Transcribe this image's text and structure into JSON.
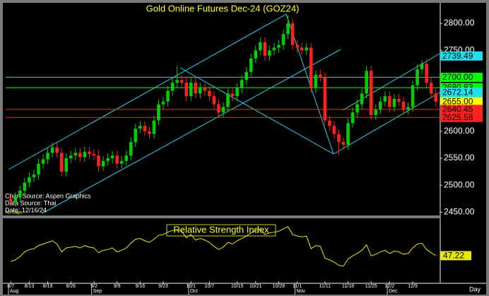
{
  "chart_data": [
    {
      "type": "candlestick",
      "title": "Gold Online Futures Dec-24 (GOZ24)",
      "categories": [
        "8/7",
        null,
        null,
        null,
        "8/13",
        null,
        null,
        null,
        "8/19",
        null,
        null,
        null,
        null,
        "8/26",
        null,
        null,
        null,
        null,
        "9/2",
        null,
        null,
        null,
        null,
        "9/9",
        null,
        null,
        null,
        null,
        "9/16",
        null,
        null,
        null,
        null,
        "9/23",
        null,
        null,
        null,
        null,
        null,
        "10/1",
        null,
        null,
        null,
        "10/7",
        null,
        null,
        null,
        null,
        null,
        "10/15",
        null,
        null,
        null,
        "10/21",
        null,
        null,
        null,
        null,
        "10/28",
        null,
        null,
        null,
        "11/1",
        null,
        null,
        null,
        null,
        null,
        "11/11",
        null,
        null,
        null,
        null,
        "11/18",
        null,
        null,
        null,
        null,
        "11/25",
        null,
        null,
        null,
        "12/2",
        null,
        null,
        null,
        null,
        "12/9",
        null,
        null,
        null,
        null,
        null
      ],
      "months": [
        "Aug",
        null,
        null,
        null,
        null,
        null,
        null,
        null,
        null,
        null,
        null,
        null,
        null,
        null,
        null,
        null,
        null,
        null,
        "Sep",
        null,
        null,
        null,
        null,
        null,
        null,
        null,
        null,
        null,
        null,
        null,
        null,
        null,
        null,
        null,
        null,
        null,
        null,
        null,
        null,
        "Oct",
        null,
        null,
        null,
        null,
        null,
        null,
        null,
        null,
        null,
        null,
        null,
        null,
        null,
        null,
        null,
        null,
        null,
        null,
        null,
        null,
        null,
        null,
        "Nov",
        null,
        null,
        null,
        null,
        null,
        null,
        null,
        null,
        null,
        null,
        null,
        null,
        null,
        null,
        null,
        null,
        null,
        null,
        null,
        "Dec",
        null,
        null,
        null,
        null,
        null,
        null,
        null,
        null,
        null,
        null
      ],
      "open": [
        2475,
        2470,
        2478,
        2490,
        2505,
        2515,
        2520,
        2540,
        2548,
        2560,
        2570,
        2560,
        2525,
        2550,
        2555,
        2560,
        2552,
        2562,
        2558,
        2555,
        2535,
        2545,
        2550,
        2555,
        2540,
        2545,
        2555,
        2580,
        2605,
        2610,
        2600,
        2595,
        2620,
        2650,
        2655,
        2675,
        2690,
        2695,
        2690,
        2665,
        2690,
        2670,
        2680,
        2675,
        2665,
        2650,
        2635,
        2645,
        2670,
        2665,
        2680,
        2695,
        2710,
        2735,
        2750,
        2765,
        2740,
        2750,
        2755,
        2760,
        2780,
        2800,
        2760,
        2755,
        2750,
        2755,
        2680,
        2705,
        2700,
        2620,
        2610,
        2595,
        2580,
        2575,
        2615,
        2635,
        2650,
        2670,
        2712,
        2630,
        2640,
        2655,
        2665,
        2645,
        2660,
        2655,
        2640,
        2645,
        2685,
        2715,
        2725,
        2690,
        2670
      ],
      "high": [
        2484,
        2487,
        2499,
        2514,
        2524,
        2529,
        2549,
        2557,
        2569,
        2579,
        2579,
        2569,
        2559,
        2564,
        2569,
        2569,
        2571,
        2571,
        2567,
        2564,
        2554,
        2559,
        2564,
        2564,
        2554,
        2564,
        2589,
        2614,
        2619,
        2619,
        2609,
        2629,
        2659,
        2664,
        2684,
        2699,
        2721,
        2704,
        2699,
        2699,
        2699,
        2689,
        2689,
        2684,
        2674,
        2659,
        2654,
        2679,
        2679,
        2689,
        2704,
        2719,
        2744,
        2759,
        2774,
        2774,
        2759,
        2764,
        2769,
        2789,
        2815,
        2809,
        2769,
        2764,
        2764,
        2764,
        2714,
        2714,
        2709,
        2629,
        2619,
        2604,
        2589,
        2624,
        2644,
        2659,
        2679,
        2721,
        2721,
        2649,
        2664,
        2674,
        2674,
        2669,
        2669,
        2664,
        2654,
        2694,
        2724,
        2732,
        2734,
        2699,
        2679
      ],
      "low": [
        2461,
        2461,
        2469,
        2481,
        2496,
        2506,
        2511,
        2531,
        2539,
        2551,
        2551,
        2516,
        2516,
        2541,
        2546,
        2543,
        2543,
        2549,
        2546,
        2526,
        2526,
        2536,
        2541,
        2531,
        2531,
        2536,
        2546,
        2571,
        2596,
        2591,
        2586,
        2586,
        2611,
        2641,
        2646,
        2666,
        2681,
        2681,
        2656,
        2656,
        2661,
        2661,
        2666,
        2656,
        2641,
        2626,
        2626,
        2636,
        2656,
        2656,
        2671,
        2686,
        2701,
        2726,
        2741,
        2731,
        2731,
        2741,
        2746,
        2751,
        2771,
        2751,
        2746,
        2741,
        2741,
        2671,
        2671,
        2691,
        2611,
        2601,
        2586,
        2556,
        2566,
        2566,
        2606,
        2626,
        2641,
        2661,
        2621,
        2621,
        2631,
        2646,
        2636,
        2636,
        2646,
        2631,
        2631,
        2636,
        2676,
        2706,
        2681,
        2661,
        2646
      ],
      "close": [
        2470,
        2478,
        2490,
        2505,
        2515,
        2520,
        2540,
        2548,
        2560,
        2570,
        2560,
        2525,
        2550,
        2555,
        2560,
        2552,
        2562,
        2558,
        2555,
        2535,
        2545,
        2550,
        2555,
        2540,
        2545,
        2555,
        2580,
        2605,
        2610,
        2600,
        2595,
        2620,
        2650,
        2655,
        2675,
        2690,
        2695,
        2690,
        2665,
        2690,
        2670,
        2680,
        2675,
        2665,
        2650,
        2635,
        2645,
        2670,
        2665,
        2680,
        2695,
        2710,
        2735,
        2750,
        2765,
        2740,
        2750,
        2755,
        2760,
        2780,
        2800,
        2760,
        2755,
        2750,
        2755,
        2680,
        2705,
        2700,
        2620,
        2610,
        2595,
        2580,
        2575,
        2615,
        2635,
        2650,
        2670,
        2712,
        2630,
        2640,
        2655,
        2665,
        2645,
        2660,
        2655,
        2640,
        2645,
        2685,
        2715,
        2725,
        2690,
        2670,
        2655
      ],
      "up_color": "#00d000",
      "down_color": "#ff2020",
      "ylim": [
        2444,
        2838
      ],
      "yticks": [
        {
          "value": 2450,
          "label": "2450.00"
        },
        {
          "value": 2500,
          "label": "2500.00"
        },
        {
          "value": 2550,
          "label": "2550.00"
        },
        {
          "value": 2600,
          "label": "2600.00"
        },
        {
          "value": 2650,
          "label": "2650.00"
        },
        {
          "value": 2700,
          "label": "2700.00"
        },
        {
          "value": 2750,
          "label": "2750.00"
        },
        {
          "value": 2800,
          "label": "2800.00"
        }
      ],
      "levels": [
        {
          "value": 2739.49,
          "color": "#20e0f0",
          "line": false
        },
        {
          "value": 2700,
          "label": "2700.00",
          "color": "#00ff00",
          "line": true
        },
        {
          "value": 2680.83,
          "color": "#00ff00",
          "line": true
        },
        {
          "value": 2672.14,
          "color": "#20e0f0",
          "line": false
        },
        {
          "value": 2655,
          "label": "2655.00",
          "color": "#ffff00",
          "line": false
        },
        {
          "value": 2640.45,
          "color": "#ff2020",
          "line": true
        },
        {
          "value": 2625.58,
          "color": "#ff2020",
          "line": true
        }
      ],
      "annotations": [
        "Chart Source: Aspen Graphics",
        "Data Source: Thai",
        "Date: 12/16/24"
      ],
      "note": "No Gaps"
    },
    {
      "type": "line",
      "title": "Relative Strength Index",
      "color": "#e8e800",
      "xlabel": "Day",
      "values": [
        40,
        42,
        46,
        52,
        55,
        56,
        60,
        62,
        64,
        66,
        62,
        52,
        57,
        58,
        59,
        57,
        60,
        58,
        57,
        51,
        54,
        55,
        57,
        52,
        54,
        57,
        63,
        68,
        69,
        66,
        64,
        68,
        73,
        74,
        77,
        79,
        80,
        78,
        70,
        74,
        67,
        69,
        67,
        64,
        59,
        55,
        58,
        64,
        62,
        66,
        69,
        72,
        76,
        79,
        81,
        74,
        76,
        77,
        78,
        81,
        84,
        74,
        72,
        71,
        72,
        56,
        60,
        59,
        44,
        42,
        39,
        35,
        34,
        43,
        47,
        50,
        54,
        61,
        47,
        49,
        52,
        54,
        50,
        53,
        52,
        49,
        50,
        57,
        62,
        63,
        55,
        51,
        47.22
      ],
      "ylim": [
        15,
        90
      ]
    }
  ]
}
